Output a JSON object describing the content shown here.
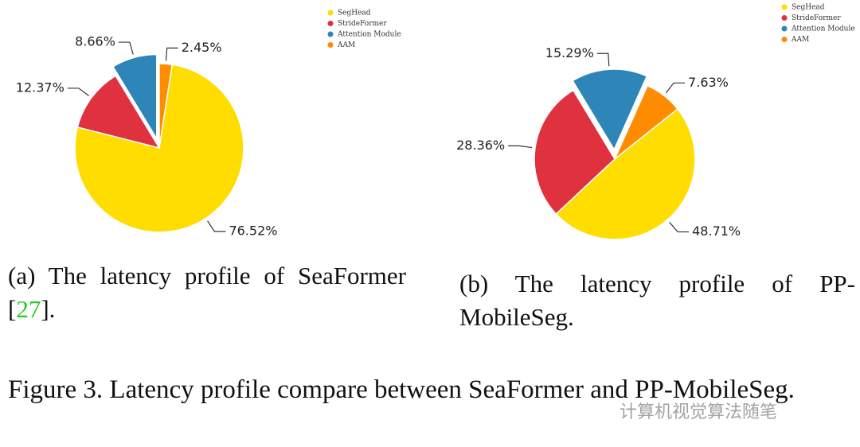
{
  "chart_data": [
    {
      "type": "pie",
      "categories": [
        "SegHead",
        "StrideFormer",
        "Attention Module",
        "AAM"
      ],
      "values": [
        76.52,
        12.37,
        8.66,
        2.45
      ],
      "value_labels": [
        "76.52%",
        "12.37%",
        "8.66%",
        "2.45%"
      ],
      "colors": [
        "#ffdd00",
        "#e0313f",
        "#2e86b8",
        "#ff8c00"
      ],
      "caption": [
        "(a) The latency profile of SeaFormer [",
        "27",
        "]."
      ]
    },
    {
      "type": "pie",
      "categories": [
        "SegHead",
        "StrideFormer",
        "Attention Module",
        "AAM"
      ],
      "values": [
        48.71,
        28.36,
        15.29,
        7.63
      ],
      "value_labels": [
        "48.71%",
        "28.36%",
        "15.29%",
        "7.63%"
      ],
      "colors": [
        "#ffdd00",
        "#e0313f",
        "#2e86b8",
        "#ff8c00"
      ],
      "caption": [
        "(b) The latency profile of PP-MobileSeg."
      ]
    }
  ],
  "figure_caption": "Figure 3. Latency profile compare between SeaFormer and PP-MobileSeg.",
  "watermark": "计算机视觉算法随笔"
}
